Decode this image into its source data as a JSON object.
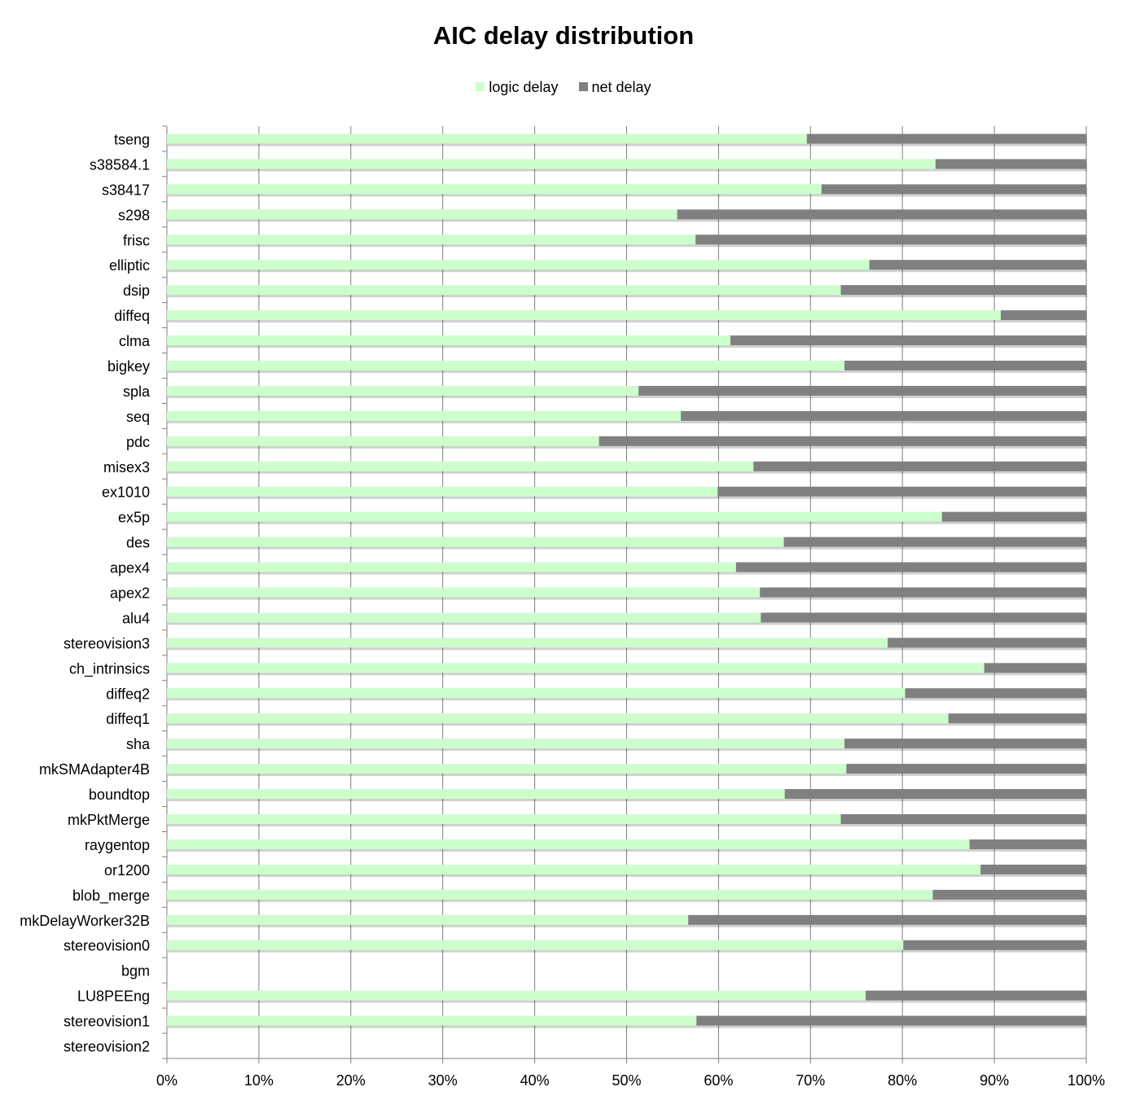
{
  "chart_data": {
    "type": "bar",
    "orientation": "horizontal",
    "stacked": "percent",
    "title": "AIC delay distribution",
    "legend_position": "top",
    "grid": true,
    "xlim": [
      0,
      100
    ],
    "x_ticks": [
      "0%",
      "10%",
      "20%",
      "30%",
      "40%",
      "50%",
      "60%",
      "70%",
      "80%",
      "90%",
      "100%"
    ],
    "categories": [
      "tseng",
      "s38584.1",
      "s38417",
      "s298",
      "frisc",
      "elliptic",
      "dsip",
      "diffeq",
      "clma",
      "bigkey",
      "spla",
      "seq",
      "pdc",
      "misex3",
      "ex1010",
      "ex5p",
      "des",
      "apex4",
      "apex2",
      "alu4",
      "stereovision3",
      "ch_intrinsics",
      "diffeq2",
      "diffeq1",
      "sha",
      "mkSMAdapter4B",
      "boundtop",
      "mkPktMerge",
      "raygentop",
      "or1200",
      "blob_merge",
      "mkDelayWorker32B",
      "stereovision0",
      "bgm",
      "LU8PEEng",
      "stereovision1",
      "stereovision2"
    ],
    "series": [
      {
        "name": "logic delay",
        "color": "#ccffcc",
        "values": [
          69.6,
          83.6,
          71.2,
          55.5,
          57.5,
          76.4,
          73.3,
          90.7,
          61.3,
          73.7,
          51.3,
          55.9,
          47.0,
          63.8,
          59.9,
          84.3,
          67.1,
          61.9,
          64.5,
          64.6,
          78.4,
          88.9,
          80.3,
          85.0,
          73.7,
          73.9,
          67.2,
          73.3,
          87.3,
          88.5,
          83.3,
          56.7,
          80.1,
          null,
          76.0,
          57.6,
          null
        ]
      },
      {
        "name": "net delay",
        "color": "#808080",
        "values": [
          30.4,
          16.4,
          28.8,
          44.5,
          42.5,
          23.6,
          26.7,
          9.3,
          38.7,
          26.3,
          48.7,
          44.1,
          53.0,
          36.2,
          40.1,
          15.7,
          32.9,
          38.1,
          35.5,
          35.4,
          21.6,
          11.1,
          19.7,
          15.0,
          26.3,
          26.1,
          32.8,
          26.7,
          12.7,
          11.5,
          16.7,
          43.3,
          19.9,
          null,
          24.0,
          42.4,
          null
        ]
      }
    ]
  }
}
